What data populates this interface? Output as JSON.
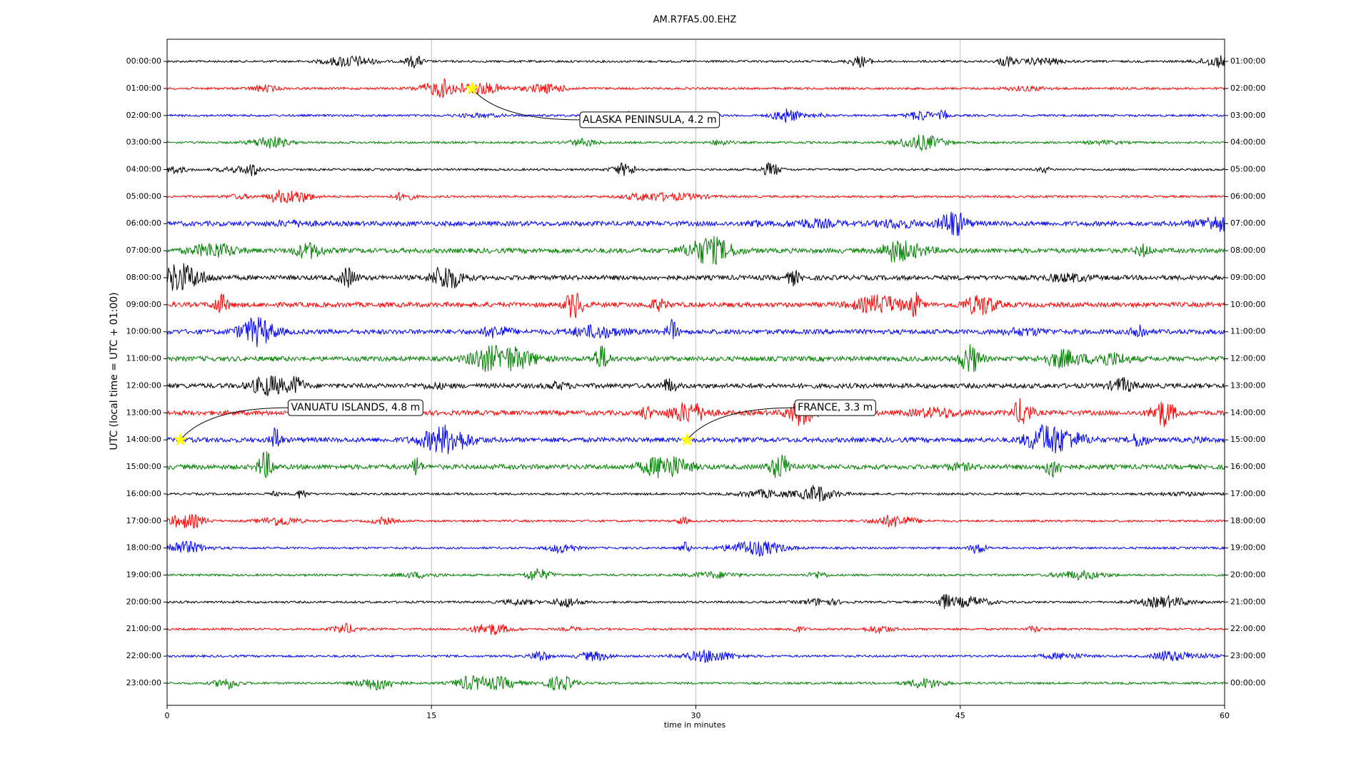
{
  "chart_data": {
    "type": "dayplot",
    "title": "AM.R7FA5.00.EHZ",
    "xlabel": "time in minutes",
    "ylabel": "UTC (local time = UTC + 01:00)",
    "xlim": [
      0,
      60
    ],
    "xticks": [
      0,
      15,
      30,
      45,
      60
    ],
    "grid": true,
    "colors": [
      "#000000",
      "#ff0000",
      "#0000ff",
      "#008000"
    ],
    "categories": [
      "00:00:00",
      "01:00:00",
      "02:00:00",
      "03:00:00",
      "04:00:00",
      "05:00:00",
      "06:00:00",
      "07:00:00",
      "08:00:00",
      "09:00:00",
      "10:00:00",
      "11:00:00",
      "12:00:00",
      "13:00:00",
      "14:00:00",
      "15:00:00",
      "16:00:00",
      "17:00:00",
      "18:00:00",
      "19:00:00",
      "20:00:00",
      "21:00:00",
      "22:00:00",
      "23:00:00"
    ],
    "right_labels": [
      "01:00:00",
      "02:00:00",
      "03:00:00",
      "04:00:00",
      "05:00:00",
      "06:00:00",
      "07:00:00",
      "08:00:00",
      "09:00:00",
      "10:00:00",
      "11:00:00",
      "12:00:00",
      "13:00:00",
      "14:00:00",
      "15:00:00",
      "16:00:00",
      "17:00:00",
      "18:00:00",
      "19:00:00",
      "20:00:00",
      "21:00:00",
      "22:00:00",
      "23:00:00",
      "00:00:00"
    ],
    "events": [
      {
        "text": "ALASKA PENINSULA, 4.2 m",
        "line": "01:00:00",
        "minute": 17.3
      },
      {
        "text": "VANUATU ISLANDS, 4.8 m",
        "line": "14:00:00",
        "minute": 0.75
      },
      {
        "text": "FRANCE, 3.3 m",
        "line": "14:00:00",
        "minute": 29.5
      }
    ]
  }
}
